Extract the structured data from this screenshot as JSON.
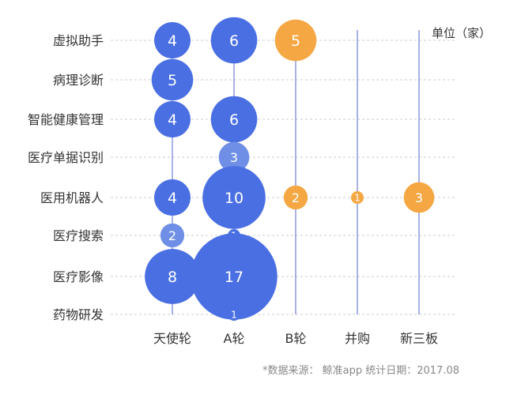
{
  "chart_data": {
    "type": "bubble",
    "unit_label": "单位（家）",
    "source": "*数据来源： 鲸准app  统计日期：2017.08",
    "x_categories": [
      "天使轮",
      "A轮",
      "B轮",
      "并购",
      "新三板"
    ],
    "y_categories": [
      "虚拟助手",
      "病理诊断",
      "智能健康管理",
      "医疗单据识别",
      "医用机器人",
      "医疗搜索",
      "医疗影像",
      "药物研发"
    ],
    "points": [
      {
        "x": "天使轮",
        "y": "虚拟助手",
        "value": 4
      },
      {
        "x": "A轮",
        "y": "虚拟助手",
        "value": 6
      },
      {
        "x": "B轮",
        "y": "虚拟助手",
        "value": 5
      },
      {
        "x": "天使轮",
        "y": "病理诊断",
        "value": 5
      },
      {
        "x": "天使轮",
        "y": "智能健康管理",
        "value": 4
      },
      {
        "x": "A轮",
        "y": "智能健康管理",
        "value": 6
      },
      {
        "x": "A轮",
        "y": "医疗单据识别",
        "value": 3
      },
      {
        "x": "天使轮",
        "y": "医用机器人",
        "value": 4
      },
      {
        "x": "A轮",
        "y": "医用机器人",
        "value": 10
      },
      {
        "x": "B轮",
        "y": "医用机器人",
        "value": 2
      },
      {
        "x": "并购",
        "y": "医用机器人",
        "value": 1
      },
      {
        "x": "新三板",
        "y": "医用机器人",
        "value": 3
      },
      {
        "x": "天使轮",
        "y": "医疗搜索",
        "value": 2
      },
      {
        "x": "A轮",
        "y": "医疗搜索",
        "value": 1
      },
      {
        "x": "天使轮",
        "y": "医疗影像",
        "value": 8
      },
      {
        "x": "A轮",
        "y": "医疗影像",
        "value": 17
      },
      {
        "x": "A轮",
        "y": "药物研发",
        "value": 1
      }
    ],
    "colors": {
      "blue": "#4a6fe3",
      "blue_light": "#6f8fe6",
      "orange": "#f4a742",
      "line": "#7b88d6",
      "grid": "#cccccc",
      "text": "#333333"
    }
  }
}
